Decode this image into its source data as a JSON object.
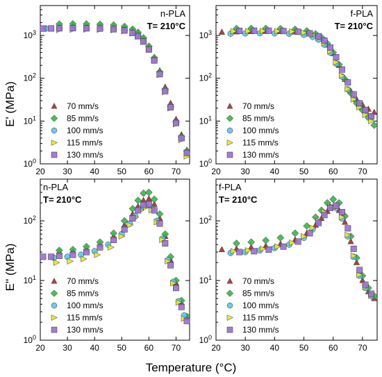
{
  "figure": {
    "ylabel_top": "E' (MPa)",
    "ylabel_bottom": "E'' (MPa)",
    "xlabel": "Temperature (°C)"
  },
  "colors": {
    "70 mm/s": "#a0312a",
    "85 mm/s": "#39b54a",
    "100 mm/s": "#5cc6e8",
    "115 mm/s": "#e8e82a",
    "130 mm/s": "#9a6fd0"
  },
  "chart_data": [
    {
      "type": "scatter",
      "panel": "top-left",
      "material": "n-PLA",
      "temperature_label": "T= 210°C",
      "log_y": true,
      "xlim": [
        20,
        75
      ],
      "ylim": [
        1,
        5000
      ],
      "xticks": [
        "20",
        "30",
        "40",
        "50",
        "60",
        "70"
      ],
      "yticks": [
        "10^0",
        "10^1",
        "10^2",
        "10^3"
      ],
      "legend_position": "lower-left",
      "series": [
        {
          "name": "70 mm/s",
          "marker": "triangle",
          "x": [
            27,
            32,
            37,
            42,
            47,
            51,
            54,
            56,
            58,
            60,
            62,
            64,
            66,
            68,
            70,
            72,
            74
          ],
          "y": [
            1700,
            1720,
            1720,
            1700,
            1650,
            1550,
            1350,
            1150,
            860,
            560,
            310,
            150,
            62,
            26,
            11,
            4.8,
            2.1
          ]
        },
        {
          "name": "85 mm/s",
          "marker": "diamond",
          "x": [
            27,
            32,
            37,
            42,
            47,
            51,
            54,
            56,
            58,
            60,
            62,
            64,
            66,
            68,
            70,
            72,
            74
          ],
          "y": [
            1850,
            1870,
            1860,
            1830,
            1750,
            1620,
            1400,
            1180,
            880,
            560,
            300,
            140,
            55,
            22,
            9.5,
            4.3,
            2.0
          ]
        },
        {
          "name": "100 mm/s",
          "marker": "circle",
          "x": [
            22,
            27,
            32,
            37,
            42,
            47,
            51,
            54,
            56,
            58,
            60,
            62,
            64,
            66,
            68,
            70,
            72,
            74
          ],
          "y": [
            1450,
            1480,
            1500,
            1490,
            1470,
            1420,
            1330,
            1160,
            980,
            730,
            480,
            270,
            130,
            52,
            22,
            9.0,
            4.0,
            1.8
          ]
        },
        {
          "name": "115 mm/s",
          "marker": "triangle-right",
          "x": [
            27,
            32,
            37,
            42,
            47,
            51,
            54,
            56,
            58,
            60,
            62,
            64,
            66,
            68,
            70,
            72,
            74
          ],
          "y": [
            1350,
            1370,
            1380,
            1370,
            1340,
            1270,
            1120,
            950,
            720,
            470,
            260,
            120,
            48,
            20,
            8.5,
            3.6,
            1.5
          ]
        },
        {
          "name": "130 mm/s",
          "marker": "square",
          "x": [
            21,
            24,
            27,
            32,
            37,
            42,
            47,
            51,
            54,
            56,
            58,
            60,
            62,
            64,
            66,
            68,
            70,
            72,
            74
          ],
          "y": [
            1450,
            1460,
            1470,
            1480,
            1470,
            1450,
            1400,
            1310,
            1150,
            960,
            720,
            470,
            260,
            125,
            50,
            21,
            9.0,
            4.0,
            1.8
          ]
        }
      ]
    },
    {
      "type": "scatter",
      "panel": "top-right",
      "material": "f-PLA",
      "temperature_label": "T= 210°C",
      "log_y": true,
      "xlim": [
        20,
        75
      ],
      "ylim": [
        1,
        5000
      ],
      "xticks": [
        "20",
        "30",
        "40",
        "50",
        "60",
        "70"
      ],
      "yticks": [
        "10^0",
        "10^1",
        "10^2",
        "10^3"
      ],
      "legend_position": "lower-left",
      "series": [
        {
          "name": "70 mm/s",
          "marker": "triangle",
          "x": [
            22,
            27,
            32,
            37,
            42,
            47,
            51,
            54,
            56,
            58,
            60,
            62,
            64,
            66,
            68,
            70,
            72,
            74
          ],
          "y": [
            1200,
            1220,
            1240,
            1250,
            1240,
            1210,
            1130,
            980,
            820,
            600,
            380,
            200,
            95,
            50,
            32,
            24,
            19,
            16
          ]
        },
        {
          "name": "85 mm/s",
          "marker": "diamond",
          "x": [
            27,
            32,
            37,
            42,
            47,
            51,
            54,
            56,
            58,
            60,
            62,
            64,
            66,
            68,
            70,
            72,
            74
          ],
          "y": [
            1450,
            1460,
            1460,
            1440,
            1390,
            1280,
            1090,
            900,
            650,
            400,
            210,
            95,
            45,
            26,
            18,
            12,
            8
          ]
        },
        {
          "name": "100 mm/s",
          "marker": "circle",
          "x": [
            25,
            30,
            35,
            40,
            45,
            50,
            53,
            55,
            57,
            59,
            61,
            63,
            65,
            67,
            69,
            71,
            73
          ],
          "y": [
            1100,
            1120,
            1130,
            1120,
            1100,
            1040,
            930,
            800,
            610,
            400,
            220,
            110,
            55,
            33,
            22,
            16,
            12
          ]
        },
        {
          "name": "115 mm/s",
          "marker": "triangle-right",
          "x": [
            26,
            31,
            36,
            41,
            46,
            50,
            53,
            55,
            57,
            59,
            61,
            63,
            65,
            67,
            69,
            71,
            73
          ],
          "y": [
            1250,
            1260,
            1270,
            1260,
            1230,
            1160,
            1030,
            880,
            660,
            430,
            235,
            115,
            56,
            32,
            21,
            14,
            10
          ]
        },
        {
          "name": "130 mm/s",
          "marker": "square",
          "x": [
            28,
            33,
            38,
            43,
            48,
            52,
            55,
            57,
            59,
            61,
            63,
            65,
            67,
            69,
            71,
            73
          ],
          "y": [
            1280,
            1290,
            1290,
            1270,
            1220,
            1120,
            960,
            760,
            520,
            310,
            160,
            80,
            42,
            26,
            18,
            13
          ]
        }
      ]
    },
    {
      "type": "scatter",
      "panel": "bottom-left",
      "material": "n-PLA",
      "temperature_label": "T= 210°C",
      "log_y": true,
      "xlim": [
        20,
        75
      ],
      "ylim": [
        1,
        500
      ],
      "xticks": [
        "20",
        "30",
        "40",
        "50",
        "60",
        "70"
      ],
      "yticks": [
        "10^0",
        "10^1",
        "10^2"
      ],
      "legend_position": "lower-left",
      "series": [
        {
          "name": "70 mm/s",
          "marker": "triangle",
          "x": [
            27,
            32,
            37,
            42,
            47,
            51,
            54,
            56,
            58,
            60,
            62,
            64,
            66,
            68,
            70,
            72,
            74
          ],
          "y": [
            30,
            31,
            34,
            40,
            55,
            85,
            130,
            175,
            220,
            235,
            190,
            110,
            55,
            22,
            9,
            4.2,
            2.4
          ]
        },
        {
          "name": "85 mm/s",
          "marker": "diamond",
          "x": [
            27,
            32,
            37,
            42,
            47,
            51,
            54,
            56,
            58,
            60,
            62,
            64,
            66,
            68,
            70,
            72,
            74
          ],
          "y": [
            32,
            33,
            37,
            44,
            62,
            100,
            160,
            220,
            290,
            300,
            230,
            130,
            60,
            25,
            10,
            4.6,
            2.5
          ]
        },
        {
          "name": "100 mm/s",
          "marker": "circle",
          "x": [
            25,
            30,
            35,
            40,
            45,
            50,
            53,
            55,
            57,
            59,
            61,
            63,
            65,
            67,
            69,
            71,
            73
          ],
          "y": [
            24,
            25,
            27,
            31,
            40,
            60,
            90,
            120,
            160,
            180,
            160,
            100,
            50,
            22,
            9.5,
            4.5,
            2.6
          ]
        },
        {
          "name": "115 mm/s",
          "marker": "triangle-right",
          "x": [
            26,
            31,
            36,
            41,
            46,
            50,
            53,
            55,
            57,
            59,
            61,
            63,
            65,
            67,
            69,
            71,
            73
          ],
          "y": [
            20,
            21,
            23,
            27,
            36,
            55,
            85,
            115,
            150,
            170,
            150,
            95,
            48,
            21,
            9,
            4.3,
            2.3
          ]
        },
        {
          "name": "130 mm/s",
          "marker": "square",
          "x": [
            21,
            24,
            27,
            32,
            37,
            42,
            47,
            51,
            54,
            56,
            58,
            60,
            62,
            64,
            66,
            68,
            70,
            72,
            74
          ],
          "y": [
            25,
            25,
            26,
            27,
            30,
            36,
            48,
            72,
            110,
            150,
            185,
            190,
            150,
            90,
            42,
            18,
            7.5,
            3.6,
            2.1
          ]
        }
      ]
    },
    {
      "type": "scatter",
      "panel": "bottom-right",
      "material": "f-PLA",
      "temperature_label": "T= 210°C",
      "log_y": true,
      "xlim": [
        20,
        75
      ],
      "ylim": [
        1,
        500
      ],
      "xticks": [
        "20",
        "30",
        "40",
        "50",
        "60",
        "70"
      ],
      "yticks": [
        "10^0",
        "10^1",
        "10^2"
      ],
      "legend_position": "lower-left",
      "series": [
        {
          "name": "70 mm/s",
          "marker": "triangle",
          "x": [
            22,
            27,
            32,
            37,
            42,
            47,
            51,
            54,
            56,
            58,
            60,
            62,
            64,
            66,
            68,
            70,
            72,
            74
          ],
          "y": [
            33,
            34,
            36,
            38,
            41,
            48,
            62,
            85,
            110,
            145,
            170,
            150,
            95,
            45,
            20,
            10,
            6.5,
            5.0
          ]
        },
        {
          "name": "85 mm/s",
          "marker": "diamond",
          "x": [
            27,
            32,
            37,
            42,
            47,
            51,
            54,
            56,
            58,
            60,
            62,
            64,
            66,
            68,
            70,
            72,
            74
          ],
          "y": [
            42,
            44,
            47,
            52,
            62,
            82,
            115,
            150,
            200,
            230,
            200,
            120,
            55,
            24,
            12,
            7.5,
            5.5
          ]
        },
        {
          "name": "100 mm/s",
          "marker": "circle",
          "x": [
            25,
            30,
            35,
            40,
            45,
            50,
            53,
            55,
            57,
            59,
            61,
            63,
            65,
            67,
            69,
            71,
            73
          ],
          "y": [
            29,
            30,
            32,
            35,
            40,
            52,
            72,
            95,
            135,
            170,
            165,
            110,
            55,
            25,
            12,
            7.5,
            5.5
          ]
        },
        {
          "name": "115 mm/s",
          "marker": "triangle-right",
          "x": [
            26,
            31,
            36,
            41,
            46,
            50,
            53,
            55,
            57,
            59,
            61,
            63,
            65,
            67,
            69,
            71,
            73
          ],
          "y": [
            31,
            32,
            34,
            37,
            43,
            55,
            76,
            100,
            140,
            175,
            170,
            115,
            58,
            26,
            12.5,
            7.8,
            5.6
          ]
        },
        {
          "name": "130 mm/s",
          "marker": "square",
          "x": [
            28,
            33,
            38,
            43,
            48,
            52,
            55,
            57,
            59,
            61,
            63,
            65,
            67,
            69,
            71,
            73
          ],
          "y": [
            30,
            31,
            33,
            37,
            45,
            62,
            92,
            125,
            165,
            180,
            140,
            75,
            34,
            15,
            8.5,
            6
          ]
        }
      ]
    }
  ]
}
